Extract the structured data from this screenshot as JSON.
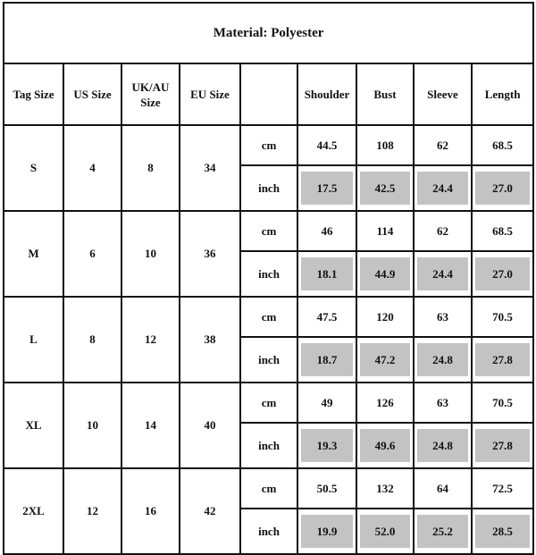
{
  "title": "Material: Polyester",
  "headers": [
    "Tag Size",
    "US Size",
    "UK/AU Size",
    "EU Size",
    "",
    "Shoulder",
    "Bust",
    "Sleeve",
    "Length"
  ],
  "units": {
    "cm": "cm",
    "inch": "inch"
  },
  "colors": {
    "inch_cell_bg": "#c3c3c3",
    "border": "#111111"
  },
  "sizes": [
    {
      "tag": "S",
      "us": "4",
      "uk": "8",
      "eu": "34",
      "cm": [
        "44.5",
        "108",
        "62",
        "68.5"
      ],
      "inch": [
        "17.5",
        "42.5",
        "24.4",
        "27.0"
      ]
    },
    {
      "tag": "M",
      "us": "6",
      "uk": "10",
      "eu": "36",
      "cm": [
        "46",
        "114",
        "62",
        "68.5"
      ],
      "inch": [
        "18.1",
        "44.9",
        "24.4",
        "27.0"
      ]
    },
    {
      "tag": "L",
      "us": "8",
      "uk": "12",
      "eu": "38",
      "cm": [
        "47.5",
        "120",
        "63",
        "70.5"
      ],
      "inch": [
        "18.7",
        "47.2",
        "24.8",
        "27.8"
      ]
    },
    {
      "tag": "XL",
      "us": "10",
      "uk": "14",
      "eu": "40",
      "cm": [
        "49",
        "126",
        "63",
        "70.5"
      ],
      "inch": [
        "19.3",
        "49.6",
        "24.8",
        "27.8"
      ]
    },
    {
      "tag": "2XL",
      "us": "12",
      "uk": "16",
      "eu": "42",
      "cm": [
        "50.5",
        "132",
        "64",
        "72.5"
      ],
      "inch": [
        "19.9",
        "52.0",
        "25.2",
        "28.5"
      ]
    }
  ]
}
